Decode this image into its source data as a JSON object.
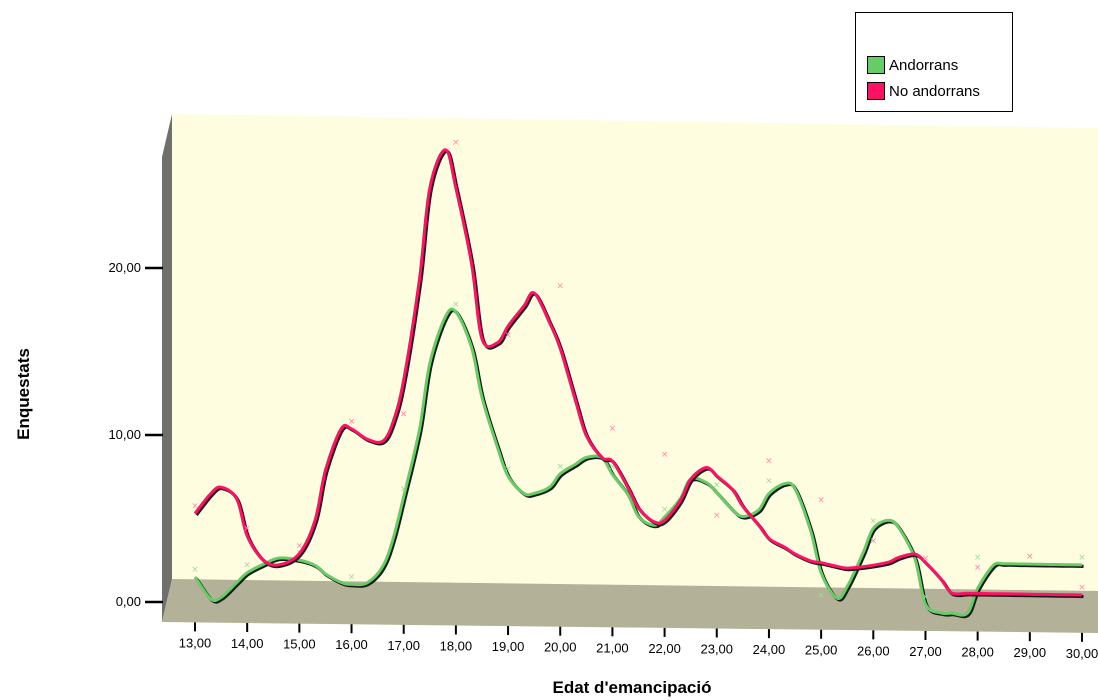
{
  "chart_data": {
    "type": "line",
    "style": "3d",
    "xlabel": "Edat d'emancipació",
    "ylabel": "Enquestats",
    "x": [
      13,
      13.3,
      13.5,
      13.8,
      14,
      14.3,
      14.6,
      15,
      15.3,
      15.5,
      15.8,
      16,
      16.3,
      16.6,
      16.8,
      17,
      17.3,
      17.5,
      17.8,
      18,
      18.3,
      18.5,
      18.8,
      19,
      19.3,
      19.5,
      19.8,
      20,
      20.3,
      20.5,
      20.8,
      21,
      21.3,
      21.5,
      21.8,
      22,
      22.3,
      22.5,
      22.8,
      23,
      23.3,
      23.5,
      23.8,
      24,
      24.3,
      24.5,
      24.8,
      25,
      25.3,
      25.5,
      25.8,
      26,
      26.3,
      26.5,
      26.8,
      27,
      27.3,
      27.5,
      27.8,
      28,
      28.3,
      28.5,
      28.8,
      29,
      29.3,
      29.5,
      29.8,
      30
    ],
    "x_ticks": [
      "13,00",
      "14,00",
      "15,00",
      "16,00",
      "17,00",
      "18,00",
      "19,00",
      "20,00",
      "21,00",
      "22,00",
      "23,00",
      "24,00",
      "25,00",
      "26,00",
      "27,00",
      "28,00",
      "29,00",
      "30,00"
    ],
    "x_tick_values": [
      13,
      14,
      15,
      16,
      17,
      18,
      19,
      20,
      21,
      22,
      23,
      24,
      25,
      26,
      27,
      28,
      29,
      30
    ],
    "y_ticks": [
      "0,00",
      "10,00",
      "20,00"
    ],
    "y_tick_values": [
      0,
      10,
      20
    ],
    "ylim": [
      0,
      27
    ],
    "xlim": [
      13,
      30
    ],
    "series": [
      {
        "name": "Andorrans",
        "color": "#66cc66",
        "values": [
          1.5,
          0.2,
          0.3,
          1.2,
          1.8,
          2.3,
          2.7,
          2.6,
          2.3,
          1.8,
          1.3,
          1.2,
          1.3,
          2.3,
          4,
          6.5,
          10.5,
          14.5,
          17.3,
          17.6,
          15.5,
          12.5,
          9.5,
          7.8,
          6.8,
          6.8,
          7.2,
          8,
          8.6,
          9,
          9,
          8,
          6.8,
          5.5,
          5,
          5.5,
          6.6,
          7.8,
          7.6,
          7,
          6,
          5.6,
          6,
          7,
          7.6,
          7.3,
          4.8,
          2.3,
          0.8,
          1.5,
          3.5,
          5,
          5.5,
          5,
          3.2,
          0.5,
          0.0,
          0.0,
          0.0,
          1.5,
          2.9,
          3.0,
          3.0,
          3.0,
          3.0,
          3.0,
          3.0,
          3.0
        ],
        "labeled_values": [
          1.5,
          1.8,
          2.6,
          1.2,
          6.5,
          17.6,
          7.8,
          8,
          8,
          5.5,
          7,
          7.3,
          0.5,
          5,
          0.5,
          2.9,
          3.0,
          3.0
        ]
      },
      {
        "name": "No andorrans",
        "color": "#ff1166",
        "values": [
          5.3,
          6.5,
          6.9,
          6.2,
          4,
          2.6,
          2.3,
          3,
          5,
          8,
          10.5,
          10.5,
          9.9,
          9.8,
          11,
          13.5,
          19.5,
          25,
          27.3,
          25,
          20.5,
          16,
          15.8,
          16.8,
          18,
          18.8,
          17,
          15.5,
          12.3,
          10.3,
          9,
          8.8,
          7.2,
          6,
          5.2,
          5.3,
          6.5,
          7.8,
          8.5,
          8,
          7.2,
          6.2,
          5.1,
          4.3,
          3.8,
          3.4,
          3.0,
          2.9,
          2.7,
          2.6,
          2.7,
          2.8,
          3.0,
          3.3,
          3.5,
          3.0,
          2.0,
          1.2,
          1.2,
          1.2,
          1.2,
          1.2,
          1.2,
          1.2,
          1.2,
          1.2,
          1.2,
          1.2
        ],
        "labeled_values": [
          5.3,
          4,
          3,
          10.5,
          11,
          27.3,
          15.8,
          18.8,
          10.3,
          8.8,
          5.2,
          8.5,
          6.2,
          3.8,
          2.8,
          2.3,
          3.0,
          1.2
        ]
      }
    ],
    "legend": {
      "position": "top-right",
      "entries": [
        "Andorrans",
        "No andorrans"
      ]
    },
    "colors": {
      "plot_background": "#fefde0",
      "floor": "#b3b198",
      "left_wall": "#6f6f6b"
    }
  }
}
